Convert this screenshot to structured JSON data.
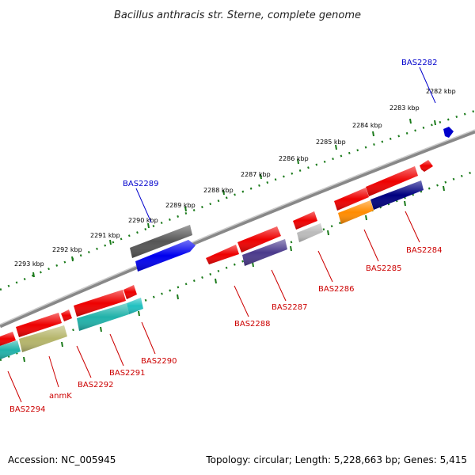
{
  "title": "Bacillus anthracis str. Sterne, complete genome",
  "footer": {
    "accession": "Accession: NC_005945",
    "summary": "Topology: circular; Length: 5,228,663 bp; Genes: 5,415"
  },
  "colors": {
    "backbone": "#8a8a8a",
    "tick": "#1a7a1a",
    "label_forward": "#0000cc",
    "label_reverse": "#cc0000"
  },
  "scale_labels": [
    {
      "kbp": 2282,
      "text": "2282 kbp"
    },
    {
      "kbp": 2283,
      "text": "2283 kbp"
    },
    {
      "kbp": 2284,
      "text": "2284 kbp"
    },
    {
      "kbp": 2285,
      "text": "2285 kbp"
    },
    {
      "kbp": 2286,
      "text": "2286 kbp"
    },
    {
      "kbp": 2287,
      "text": "2287 kbp"
    },
    {
      "kbp": 2288,
      "text": "2288 kbp"
    },
    {
      "kbp": 2289,
      "text": "2289 kbp"
    },
    {
      "kbp": 2290,
      "text": "2290 kbp"
    },
    {
      "kbp": 2291,
      "text": "2291 kbp"
    },
    {
      "kbp": 2292,
      "text": "2292 kbp"
    },
    {
      "kbp": 2293,
      "text": "2293 kbp"
    }
  ],
  "genes": [
    {
      "name": "BAS2282",
      "strand": "forward",
      "color": "#0000cc",
      "start_kbp": 2282.05,
      "end_kbp": 2282.2
    },
    {
      "name": "BAS2289",
      "strand": "forward",
      "color": "#555555",
      "start_kbp": 2289.1,
      "end_kbp": 2290.75
    },
    {
      "name": "BAS2284",
      "strand": "reverse",
      "color": "#000080",
      "start_kbp": 2283.7,
      "end_kbp": 2285.25
    },
    {
      "name": "BAS2285",
      "strand": "reverse",
      "color": "#ff8c00",
      "start_kbp": 2285.25,
      "end_kbp": 2286.0
    },
    {
      "name": "BAS2286",
      "strand": "reverse",
      "color": "#bbbbbb",
      "start_kbp": 2286.85,
      "end_kbp": 2287.25
    },
    {
      "name": "BAS2287",
      "strand": "reverse",
      "color": "#4b3a8c",
      "start_kbp": 2287.75,
      "end_kbp": 2288.45
    },
    {
      "name": "BAS2290",
      "strand": "reverse",
      "color": "#20b2aa",
      "start_kbp": 2291.35,
      "end_kbp": 2292.25
    },
    {
      "name": "BAS2291",
      "strand": "reverse",
      "color": "#20c0c0",
      "start_kbp": 2292.25,
      "end_kbp": 2292.85
    },
    {
      "name": "anmK",
      "strand": "reverse",
      "color": "#b5b56a",
      "start_kbp": 2293.3,
      "end_kbp": 2294.2
    },
    {
      "name": "BAS2294",
      "strand": "reverse",
      "color": "#20b2aa",
      "start_kbp": 2294.25,
      "end_kbp": 2294.95
    }
  ]
}
